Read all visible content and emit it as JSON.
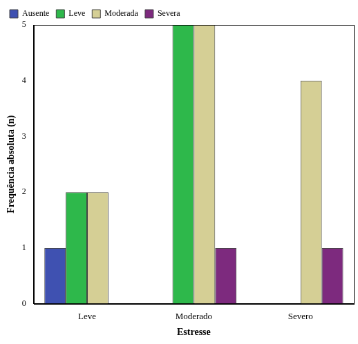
{
  "chart_data": {
    "type": "bar",
    "x_label": "Estresse",
    "y_label": "Frequência absoluta (n)",
    "categories": [
      "Leve",
      "Moderado",
      "Severo"
    ],
    "series": [
      {
        "name": "Ausente",
        "color": "#3f51b1",
        "values": [
          1,
          0,
          0
        ]
      },
      {
        "name": "Leve",
        "color": "#2eb84b",
        "values": [
          2,
          5,
          0
        ]
      },
      {
        "name": "Moderada",
        "color": "#d5cf95",
        "values": [
          2,
          5,
          4
        ]
      },
      {
        "name": "Severa",
        "color": "#7d2a7e",
        "values": [
          0,
          1,
          1
        ]
      }
    ],
    "ylim": [
      0,
      5
    ],
    "yticks": [
      0,
      1,
      2,
      3,
      4,
      5
    ],
    "grid": false,
    "legend": "upper left"
  }
}
